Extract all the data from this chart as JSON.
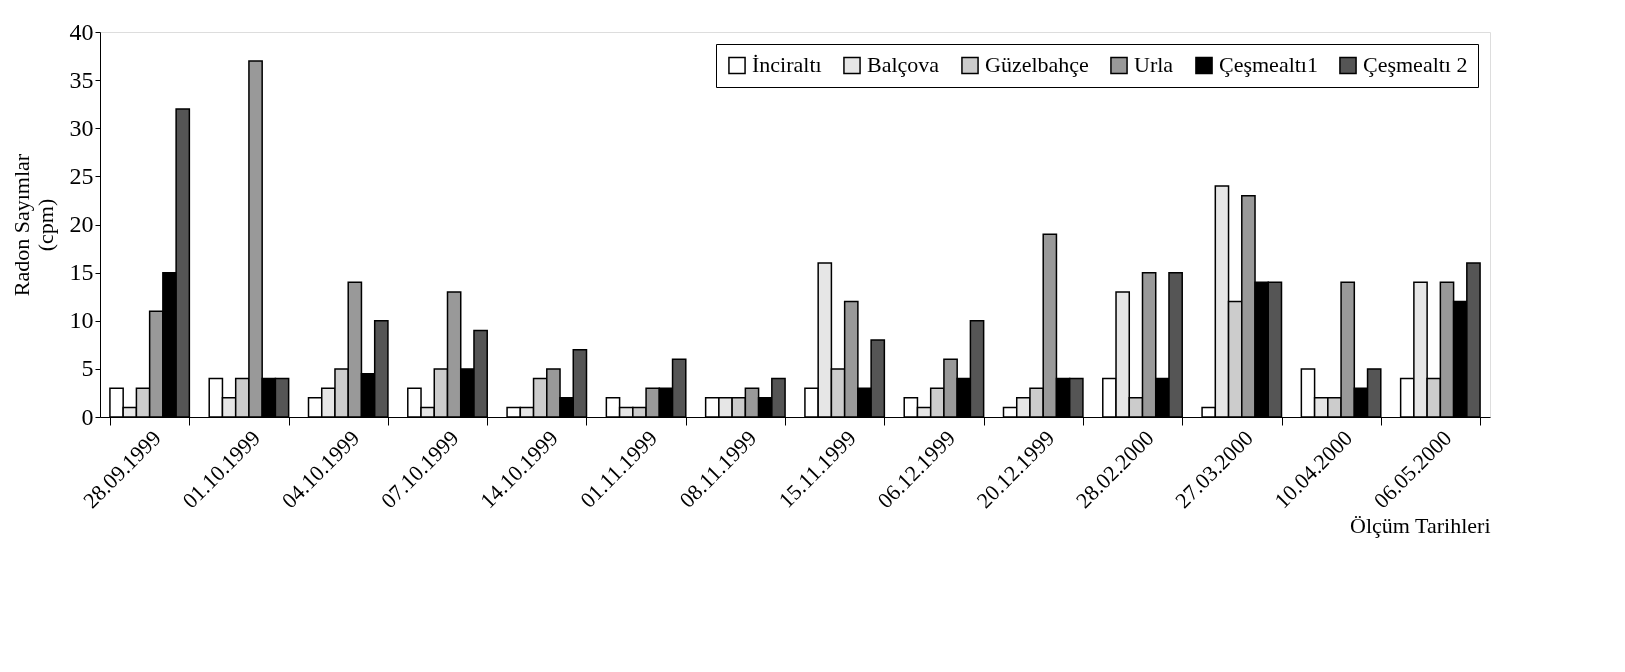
{
  "chart_data": {
    "type": "bar",
    "categories": [
      "28.09.1999",
      "01.10.1999",
      "04.10.1999",
      "07.10.1999",
      "14.10.1999",
      "01.11.1999",
      "08.11.1999",
      "15.11.1999",
      "06.12.1999",
      "20.12.1999",
      "28.02.2000",
      "27.03.2000",
      "10.04.2000",
      "06.05.2000"
    ],
    "series": [
      {
        "name": "İnciraltı",
        "color": "#ffffff",
        "values": [
          3,
          4,
          2,
          3,
          1,
          2,
          2,
          3,
          2,
          1,
          4,
          1,
          5,
          4
        ]
      },
      {
        "name": "Balçova",
        "color": "#e6e6e6",
        "values": [
          1,
          2,
          3,
          1,
          1,
          1,
          2,
          16,
          1,
          2,
          13,
          24,
          2,
          14
        ]
      },
      {
        "name": "Güzelbahçe",
        "color": "#cccccc",
        "values": [
          3,
          4,
          5,
          5,
          4,
          1,
          2,
          5,
          3,
          3,
          2,
          12,
          2,
          4
        ]
      },
      {
        "name": "Urla",
        "color": "#999999",
        "values": [
          11,
          37,
          14,
          13,
          5,
          3,
          3,
          12,
          6,
          19,
          15,
          23,
          14,
          14
        ]
      },
      {
        "name": "Çeşmealtı1",
        "color": "#000000",
        "values": [
          15,
          4,
          4.5,
          5,
          2,
          3,
          2,
          3,
          4,
          4,
          4,
          14,
          3,
          12
        ]
      },
      {
        "name": "Çeşmealtı 2",
        "color": "#555555",
        "values": [
          32,
          4,
          10,
          9,
          7,
          6,
          4,
          8,
          10,
          4,
          15,
          14,
          5,
          16
        ]
      }
    ],
    "xlabel": "Ölçüm Tarihleri",
    "ylabel": "Radon Sayımlar\n(cpm)",
    "ylim": [
      0,
      40
    ],
    "yticks": [
      0,
      5,
      10,
      15,
      20,
      25,
      30,
      35,
      40
    ],
    "grid": false,
    "legend": "top right"
  }
}
